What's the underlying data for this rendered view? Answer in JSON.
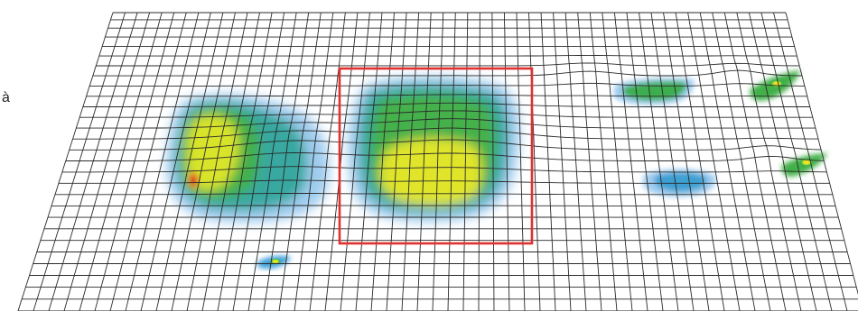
{
  "figure": {
    "fragment_text": "à",
    "description_colors": {
      "grid_line": "#2a2a2a",
      "highlight_frame": "#e03030",
      "low": "#5aa0dc",
      "mid": "#36b04a",
      "high": "#f2ea22",
      "peak": "#e0552a"
    }
  }
}
